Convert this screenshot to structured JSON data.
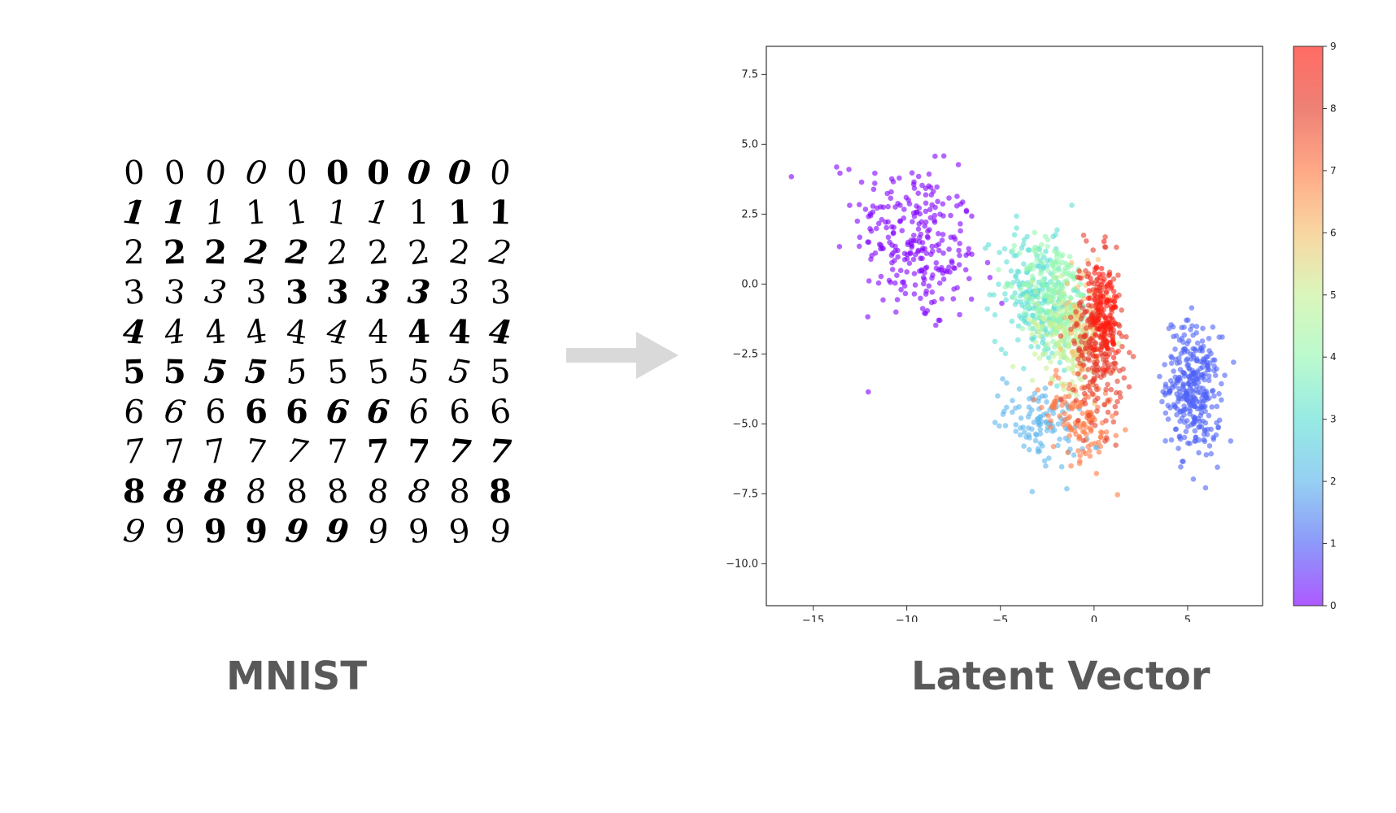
{
  "mnist": {
    "caption": "MNIST",
    "rows": [
      [
        "0",
        "0",
        "0",
        "0",
        "0",
        "0",
        "0",
        "0",
        "0",
        "0"
      ],
      [
        "1",
        "1",
        "1",
        "1",
        "1",
        "1",
        "1",
        "1",
        "1",
        "1"
      ],
      [
        "2",
        "2",
        "2",
        "2",
        "2",
        "2",
        "2",
        "2",
        "2",
        "2"
      ],
      [
        "3",
        "3",
        "3",
        "3",
        "3",
        "3",
        "3",
        "3",
        "3",
        "3"
      ],
      [
        "4",
        "4",
        "4",
        "4",
        "4",
        "4",
        "4",
        "4",
        "4",
        "4"
      ],
      [
        "5",
        "5",
        "5",
        "5",
        "5",
        "5",
        "5",
        "5",
        "5",
        "5"
      ],
      [
        "6",
        "6",
        "6",
        "6",
        "6",
        "6",
        "6",
        "6",
        "6",
        "6"
      ],
      [
        "7",
        "7",
        "7",
        "7",
        "7",
        "7",
        "7",
        "7",
        "7",
        "7"
      ],
      [
        "8",
        "8",
        "8",
        "8",
        "8",
        "8",
        "8",
        "8",
        "8",
        "8"
      ],
      [
        "9",
        "9",
        "9",
        "9",
        "9",
        "9",
        "9",
        "9",
        "9",
        "9"
      ]
    ]
  },
  "arrow": {
    "icon": "right-arrow-icon",
    "color": "#d9d9d9"
  },
  "latent": {
    "caption": "Latent Vector"
  },
  "chart_data": {
    "type": "scatter",
    "title": "",
    "xlabel": "",
    "ylabel": "",
    "xlim": [
      -17.5,
      9
    ],
    "ylim": [
      -11.5,
      8.5
    ],
    "xticks": [
      -15,
      -10,
      -5,
      0,
      5
    ],
    "yticks": [
      7.5,
      5.0,
      2.5,
      0.0,
      -2.5,
      -5.0,
      -7.5,
      -10.0
    ],
    "xtick_labels": [
      "−15",
      "−10",
      "−5",
      "0",
      "5"
    ],
    "ytick_labels": [
      "7.5",
      "5.0",
      "2.5",
      "0.0",
      "−2.5",
      "−5.0",
      "−7.5",
      "−10.0"
    ],
    "colorbar": {
      "colormap": "rainbow",
      "range": [
        0,
        9
      ],
      "ticks": [
        "0",
        "1",
        "2",
        "3",
        "4",
        "5",
        "6",
        "7",
        "8",
        "9"
      ]
    },
    "grid": false,
    "point_alpha": 0.6,
    "clusters": [
      {
        "label": 0,
        "center": [
          -9.5,
          1.5
        ],
        "spread": [
          3.0,
          2.6
        ],
        "count": 260,
        "color": "#8000ff"
      },
      {
        "label": 1,
        "center": [
          5.3,
          -3.8
        ],
        "spread": [
          1.3,
          2.1
        ],
        "count": 320,
        "color": "#4f62f7"
      },
      {
        "label": 2,
        "center": [
          -2.8,
          -5.0
        ],
        "spread": [
          1.8,
          1.2
        ],
        "count": 110,
        "color": "#5db6ec"
      },
      {
        "label": 3,
        "center": [
          -3.0,
          -0.5
        ],
        "spread": [
          2.0,
          2.0
        ],
        "count": 220,
        "color": "#5ee0d5"
      },
      {
        "label": 4,
        "center": [
          -2.0,
          -0.5
        ],
        "spread": [
          1.8,
          1.8
        ],
        "count": 220,
        "color": "#96f7b3"
      },
      {
        "label": 5,
        "center": [
          -1.5,
          -1.8
        ],
        "spread": [
          1.6,
          1.6
        ],
        "count": 150,
        "color": "#c6f197"
      },
      {
        "label": 6,
        "center": [
          -0.5,
          -1.5
        ],
        "spread": [
          1.2,
          1.8
        ],
        "count": 80,
        "color": "#f6c16f"
      },
      {
        "label": 7,
        "center": [
          -0.8,
          -4.8
        ],
        "spread": [
          1.8,
          1.4
        ],
        "count": 130,
        "color": "#ff7a45"
      },
      {
        "label": 8,
        "center": [
          0.2,
          -2.0
        ],
        "spread": [
          1.2,
          2.6
        ],
        "count": 260,
        "color": "#e53d2b"
      },
      {
        "label": 9,
        "center": [
          0.5,
          -1.0
        ],
        "spread": [
          0.7,
          1.6
        ],
        "count": 120,
        "color": "#ff1c10"
      }
    ]
  }
}
